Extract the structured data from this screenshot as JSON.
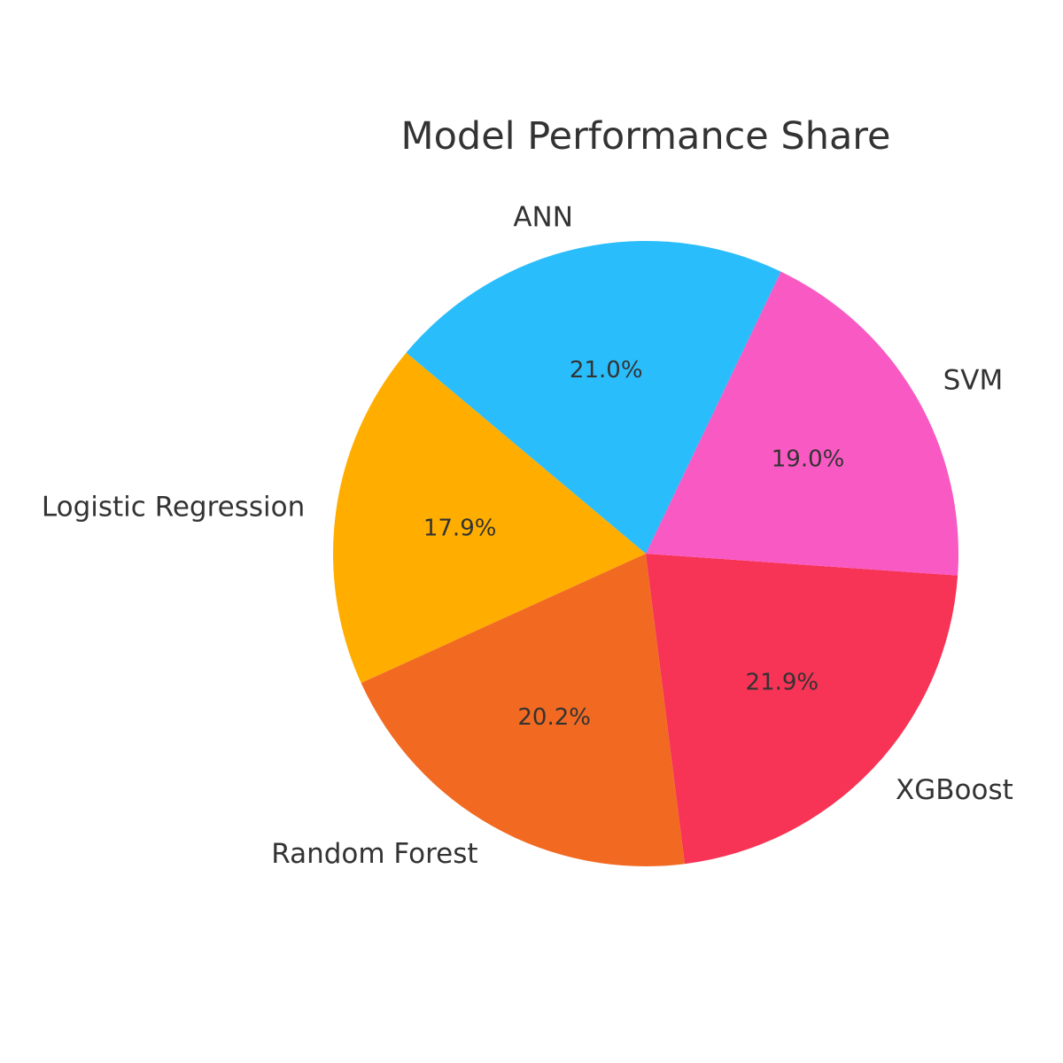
{
  "chart_data": {
    "type": "pie",
    "title": "Model Performance Share",
    "categories": [
      "Logistic Regression",
      "Random Forest",
      "XGBoost",
      "SVM",
      "ANN"
    ],
    "values": [
      17.9,
      20.2,
      21.9,
      19.0,
      21.0
    ],
    "percent_labels": [
      "17.9%",
      "20.2%",
      "21.9%",
      "19.0%",
      "21.0%"
    ],
    "colors": [
      "#FFAE00",
      "#F26A22",
      "#F73356",
      "#F959C3",
      "#2ABDFB"
    ],
    "start_angle_deg": 140,
    "direction": "counterclockwise",
    "legend": "none"
  }
}
